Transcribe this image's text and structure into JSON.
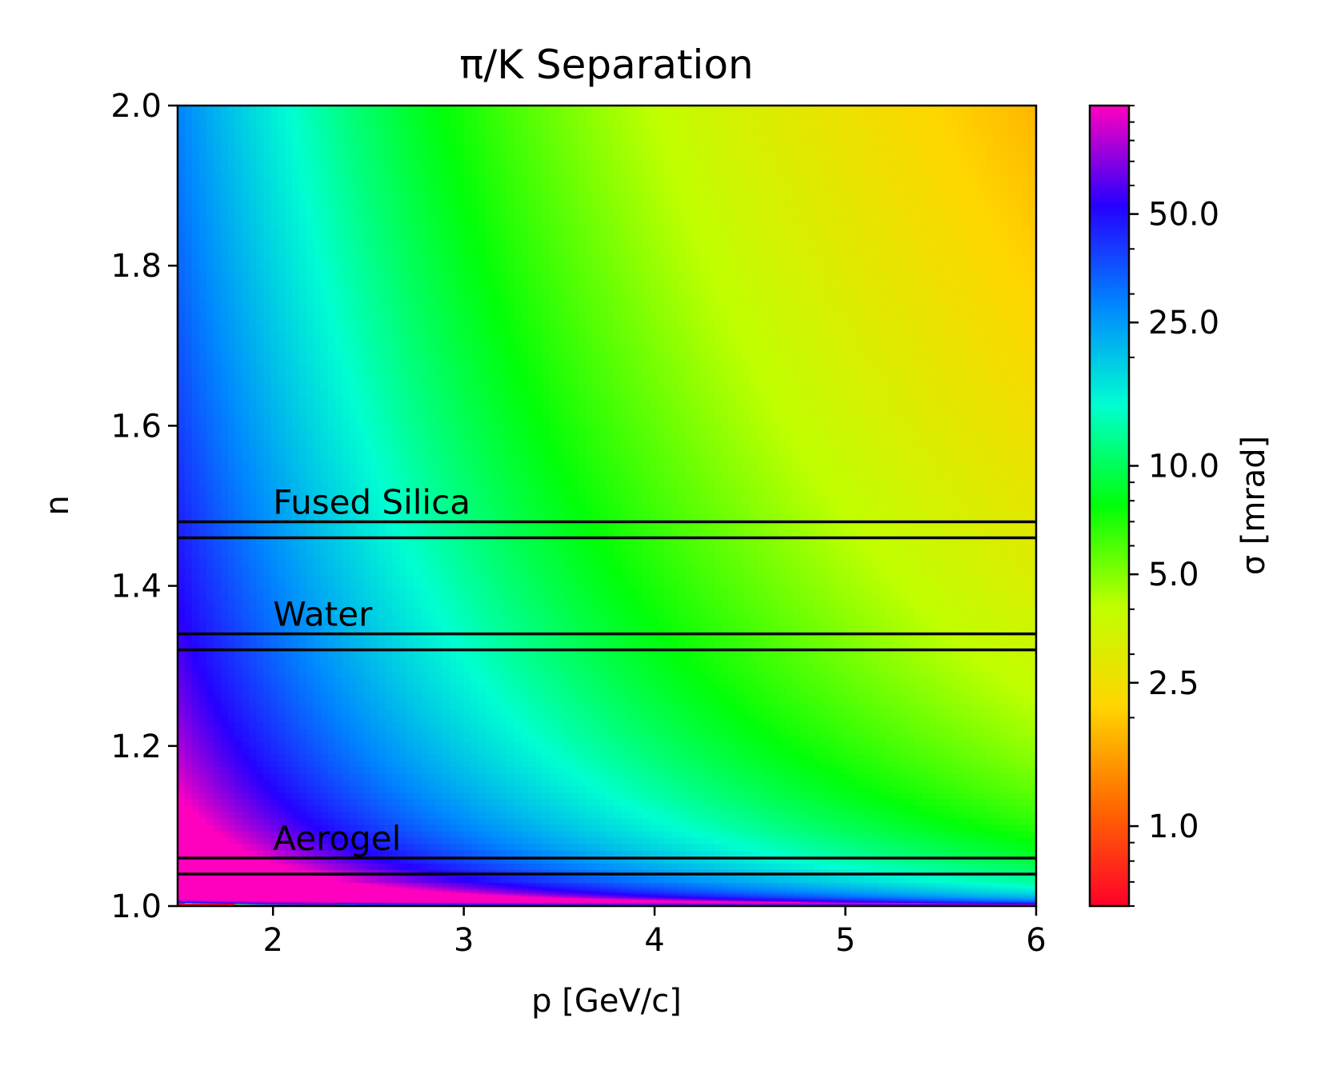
{
  "chart_data": {
    "type": "heatmap",
    "title": "π/K Separation",
    "xlabel": "p [GeV/c]",
    "ylabel": "n",
    "xlim": [
      1.5,
      6
    ],
    "ylim": [
      1.0,
      2.0
    ],
    "x_ticks": [
      2,
      3,
      4,
      5,
      6
    ],
    "y_ticks": [
      1.0,
      1.2,
      1.4,
      1.6,
      1.8,
      2.0
    ],
    "x_tick_labels": [
      "2",
      "3",
      "4",
      "5",
      "6"
    ],
    "y_tick_labels": [
      "1.0",
      "1.2",
      "1.4",
      "1.6",
      "1.8",
      "2.0"
    ],
    "colorbar": {
      "label": "σ [mrad]",
      "scale": "log",
      "range": [
        0.6,
        100
      ],
      "ticks": [
        1.0,
        2.5,
        5.0,
        10.0,
        25.0,
        50.0
      ],
      "tick_labels": [
        "1.0",
        "2.5",
        "5.0",
        "10.0",
        "25.0",
        "50.0"
      ],
      "colormap": "gist_rainbow_r",
      "color_stops": [
        "#ff0029",
        "#ff6a00",
        "#ffd500",
        "#bfff00",
        "#00ff08",
        "#00ffd1",
        "#0087ff",
        "#2600ff",
        "#ff00bf"
      ]
    },
    "bands": [
      {
        "label": "Fused Silica",
        "n_range": [
          1.46,
          1.48
        ]
      },
      {
        "label": "Water",
        "n_range": [
          1.32,
          1.34
        ]
      },
      {
        "label": "Aerogel",
        "n_range": [
          1.04,
          1.06
        ]
      }
    ],
    "grid": false
  }
}
